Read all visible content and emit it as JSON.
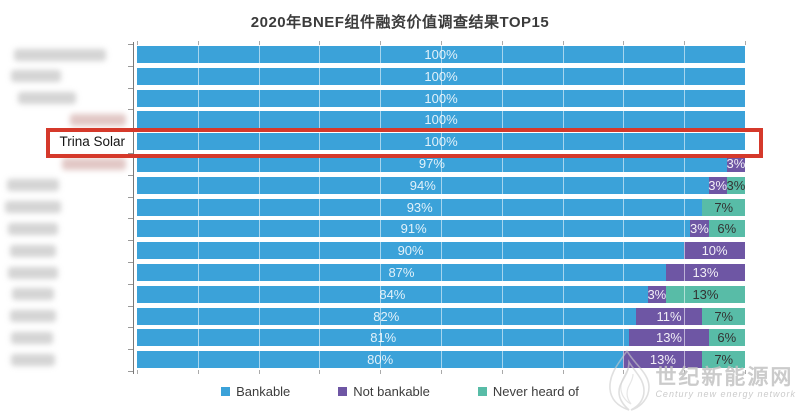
{
  "title": "2020年BNEF组件融资价值调查结果TOP15",
  "watermark": {
    "cn": "世纪新能源网",
    "en": "Century new energy network"
  },
  "chart_data": {
    "type": "bar",
    "orientation": "horizontal-stacked",
    "title": "2020年BNEF组件融资价值调查结果TOP15",
    "x_axis": {
      "min": 0,
      "max": 100,
      "unit": "%",
      "gridline_step_pct": 10,
      "gridlines_visible": true
    },
    "legend_position": "bottom",
    "categories": [
      "",
      "",
      "",
      "",
      "Trina Solar",
      "",
      "",
      "",
      "",
      "",
      "",
      "",
      "",
      "",
      ""
    ],
    "highlight": {
      "row_index": 4,
      "category": "Trina Solar",
      "box_color": "#D5392B"
    },
    "series": [
      {
        "name": "Bankable",
        "color": "#3BA2D9",
        "label_color": "rgba(255,255,255,0.85)",
        "values": [
          100,
          100,
          100,
          100,
          100,
          97,
          94,
          93,
          91,
          90,
          87,
          84,
          82,
          81,
          80
        ]
      },
      {
        "name": "Not bankable",
        "color": "#6E56A4",
        "label_color": "rgba(255,255,255,0.9)",
        "values": [
          0,
          0,
          0,
          0,
          0,
          3,
          3,
          0,
          3,
          10,
          13,
          3,
          11,
          13,
          13
        ]
      },
      {
        "name": "Never heard of",
        "color": "#58BCA7",
        "label_color": "#333333",
        "values": [
          0,
          0,
          0,
          0,
          0,
          0,
          3,
          7,
          6,
          0,
          0,
          13,
          7,
          6,
          7
        ]
      }
    ],
    "redacted_labels": {
      "widths": [
        92,
        50,
        58,
        56,
        null,
        64,
        52,
        56,
        50,
        46,
        50,
        42,
        46,
        42,
        44
      ],
      "rights": [
        25,
        70,
        55,
        5,
        null,
        5,
        72,
        70,
        73,
        75,
        73,
        77,
        75,
        78,
        76
      ],
      "pink_rows": [
        3,
        5
      ]
    }
  }
}
